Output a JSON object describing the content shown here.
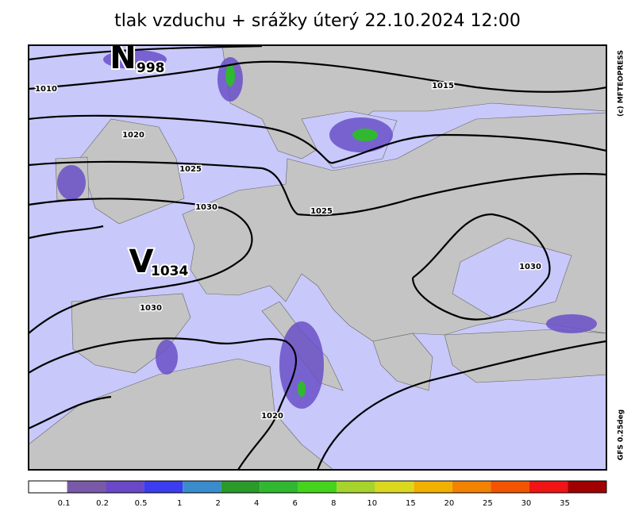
{
  "title": "tlak vzduchu + srážky   úterý 22.10.2024 12:00",
  "pressure_centers": [
    {
      "letter": "N",
      "value": "998"
    },
    {
      "letter": "V",
      "value": "1034"
    }
  ],
  "isobar_labels": [
    "1010",
    "1015",
    "1020",
    "1025",
    "1030",
    "1025",
    "1030",
    "1030",
    "1020"
  ],
  "credit": "(c) MFTEOPRESS",
  "model": "GFS 0.25deg",
  "legend": {
    "colors": [
      "#ffffff",
      "#7a5aa8",
      "#6a48c8",
      "#3c3cf0",
      "#3a8ccc",
      "#2a9a2a",
      "#30b830",
      "#44d41c",
      "#a6d42c",
      "#dcd820",
      "#f2b000",
      "#f28200",
      "#f25400",
      "#f01414",
      "#a00000"
    ],
    "labels": [
      "0.1",
      "0.2",
      "0.5",
      "1",
      "2",
      "4",
      "6",
      "8",
      "10",
      "15",
      "20",
      "25",
      "30",
      "35"
    ]
  }
}
